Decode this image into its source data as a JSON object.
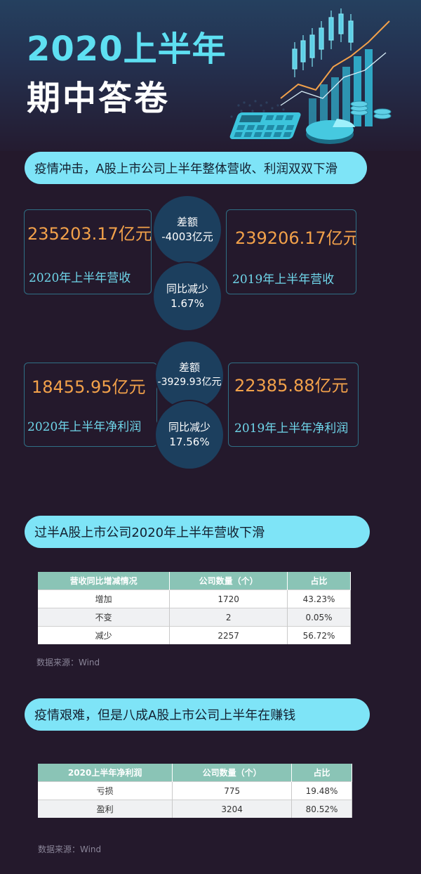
{
  "header": {
    "title_line1": "2020上半年",
    "title_line2": "期中答卷"
  },
  "section1": {
    "pill": "疫情冲击，A股上市公司上半年整体营收、利润双双下滑",
    "revenue": {
      "left_amount": "235203.17亿元",
      "left_label": "2020年上半年营收",
      "right_amount": "239206.17亿元",
      "right_label": "2019年上半年营收",
      "diff_title": "差额",
      "diff_value": "-4003亿元",
      "yoy_title": "同比减少",
      "yoy_value": "1.67%"
    },
    "profit": {
      "left_amount": "18455.95亿元",
      "left_label": "2020年上半年净利润",
      "right_amount": "22385.88亿元",
      "right_label": "2019年上半年净利润",
      "diff_title": "差额",
      "diff_value": "-3929.93亿元",
      "yoy_title": "同比减少",
      "yoy_value": "17.56%"
    }
  },
  "section2": {
    "pill": "过半A股上市公司2020年上半年营收下滑",
    "table": {
      "headers": [
        "营收同比增减情况",
        "公司数量（个）",
        "占比"
      ],
      "rows": [
        [
          "增加",
          "1720",
          "43.23%"
        ],
        [
          "不变",
          "2",
          "0.05%"
        ],
        [
          "减少",
          "2257",
          "56.72%"
        ]
      ]
    },
    "source": "数据来源：Wind"
  },
  "section3": {
    "pill": "疫情艰难，但是八成A股上市公司上半年在赚钱",
    "table": {
      "headers": [
        "2020上半年净利润",
        "公司数量（个）",
        "占比"
      ],
      "rows": [
        [
          "亏损",
          "775",
          "19.48%"
        ],
        [
          "盈利",
          "3204",
          "80.52%"
        ]
      ]
    },
    "source": "数据来源：Wind"
  },
  "colors": {
    "background": "#24192c",
    "title_cyan": "#5ee0f2",
    "pill": "#7ee4f7",
    "amount_orange": "#f2a14a",
    "label_cyan": "#6fd6ea",
    "circle": "#1c3f5e",
    "table_header": "#8ac4b6"
  }
}
